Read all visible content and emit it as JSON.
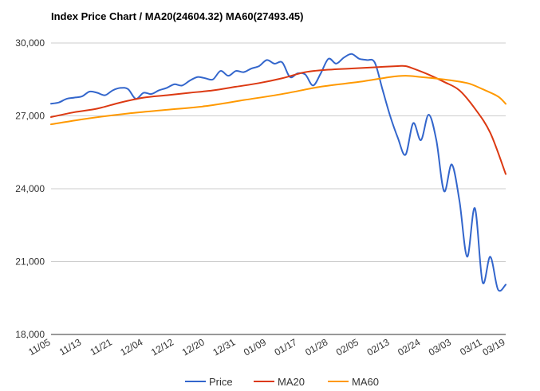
{
  "title": "Index Price Chart / MA20(24604.32) MA60(27493.45)",
  "chart_data": {
    "type": "line",
    "title": "Index Price Chart / MA20(24604.32) MA60(27493.45)",
    "xlabel": "",
    "ylabel": "",
    "ylim": [
      18000,
      30000
    ],
    "yticks": [
      18000,
      21000,
      24000,
      27000,
      30000
    ],
    "ytick_labels": [
      "18,000",
      "21,000",
      "24,000",
      "27,000",
      "30,000"
    ],
    "x_range": [
      0,
      84
    ],
    "xticks": [
      0,
      5,
      10,
      15,
      20,
      25,
      30,
      35,
      40,
      45,
      50,
      55,
      60,
      65,
      70,
      75,
      80,
      84
    ],
    "xtick_labels": [
      "11/05",
      "11/13",
      "11/21",
      "12/04",
      "12/12",
      "12/20",
      "12/31",
      "01/09",
      "01/17",
      "01/28",
      "02/05",
      "02/13",
      "02/24",
      "03/03",
      "03/11",
      "03/19"
    ],
    "xtick_positions": [
      0,
      5,
      10,
      15,
      21,
      26,
      31,
      36,
      41,
      46,
      52,
      57,
      62,
      67,
      72,
      77
    ],
    "grid": true,
    "legend_position": "bottom",
    "series": [
      {
        "name": "Price",
        "color": "#3366cc",
        "points": [
          [
            0,
            27500
          ],
          [
            1,
            27550
          ],
          [
            2,
            27700
          ],
          [
            3,
            27750
          ],
          [
            4,
            27800
          ],
          [
            5,
            28000
          ],
          [
            6,
            27950
          ],
          [
            7,
            27850
          ],
          [
            8,
            28050
          ],
          [
            9,
            28150
          ],
          [
            10,
            28100
          ],
          [
            11,
            27700
          ],
          [
            12,
            27950
          ],
          [
            13,
            27900
          ],
          [
            14,
            28050
          ],
          [
            15,
            28150
          ],
          [
            16,
            28300
          ],
          [
            17,
            28250
          ],
          [
            18,
            28450
          ],
          [
            19,
            28600
          ],
          [
            20,
            28550
          ],
          [
            21,
            28500
          ],
          [
            22,
            28850
          ],
          [
            23,
            28650
          ],
          [
            24,
            28850
          ],
          [
            25,
            28800
          ],
          [
            26,
            28950
          ],
          [
            27,
            29050
          ],
          [
            28,
            29300
          ],
          [
            29,
            29150
          ],
          [
            30,
            29200
          ],
          [
            31,
            28600
          ],
          [
            32,
            28750
          ],
          [
            33,
            28700
          ],
          [
            34,
            28250
          ],
          [
            35,
            28750
          ],
          [
            36,
            29350
          ],
          [
            37,
            29150
          ],
          [
            38,
            29400
          ],
          [
            39,
            29550
          ],
          [
            40,
            29350
          ],
          [
            41,
            29300
          ],
          [
            42,
            29200
          ],
          [
            43,
            28100
          ],
          [
            44,
            27000
          ],
          [
            45,
            26100
          ],
          [
            46,
            25400
          ],
          [
            47,
            26700
          ],
          [
            48,
            26000
          ],
          [
            49,
            27050
          ],
          [
            50,
            26000
          ],
          [
            51,
            23900
          ],
          [
            52,
            25000
          ],
          [
            53,
            23500
          ],
          [
            54,
            21200
          ],
          [
            55,
            23200
          ],
          [
            56,
            20150
          ],
          [
            57,
            21200
          ],
          [
            58,
            19850
          ],
          [
            59,
            20050
          ]
        ]
      },
      {
        "name": "MA20",
        "color": "#dc3912",
        "points": [
          [
            0,
            26950
          ],
          [
            3,
            27150
          ],
          [
            6,
            27300
          ],
          [
            9,
            27550
          ],
          [
            12,
            27750
          ],
          [
            15,
            27850
          ],
          [
            18,
            27950
          ],
          [
            21,
            28050
          ],
          [
            24,
            28200
          ],
          [
            27,
            28350
          ],
          [
            30,
            28550
          ],
          [
            33,
            28800
          ],
          [
            36,
            28900
          ],
          [
            39,
            28950
          ],
          [
            42,
            29000
          ],
          [
            45,
            29050
          ],
          [
            46,
            29050
          ],
          [
            47,
            28950
          ],
          [
            49,
            28700
          ],
          [
            51,
            28400
          ],
          [
            53,
            28050
          ],
          [
            55,
            27300
          ],
          [
            57,
            26300
          ],
          [
            59,
            24604
          ]
        ]
      },
      {
        "name": "MA60",
        "color": "#ff9900",
        "points": [
          [
            0,
            26650
          ],
          [
            5,
            26900
          ],
          [
            10,
            27100
          ],
          [
            15,
            27250
          ],
          [
            20,
            27400
          ],
          [
            25,
            27650
          ],
          [
            30,
            27900
          ],
          [
            35,
            28200
          ],
          [
            40,
            28400
          ],
          [
            44,
            28600
          ],
          [
            46,
            28650
          ],
          [
            48,
            28600
          ],
          [
            51,
            28500
          ],
          [
            54,
            28350
          ],
          [
            56,
            28100
          ],
          [
            58,
            27800
          ],
          [
            59,
            27493
          ]
        ]
      }
    ]
  }
}
